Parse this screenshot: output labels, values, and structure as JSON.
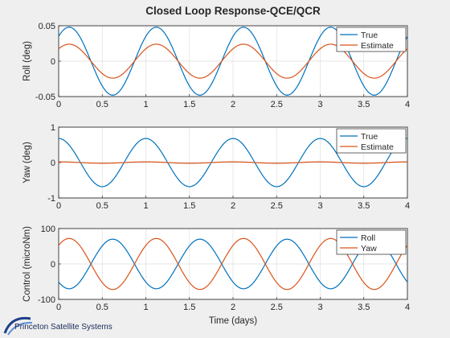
{
  "title": "Closed Loop Response-QCE/QCR",
  "footer_logo": "Princeton Satellite Systems",
  "colors": {
    "blue": "#0072bd",
    "orange": "#d95319"
  },
  "chart_data": [
    {
      "type": "line",
      "ylabel": "Roll (deg)",
      "xlabel": "",
      "xlim": [
        0,
        4
      ],
      "ylim": [
        -0.05,
        0.05
      ],
      "xticks": [
        "0",
        "0.5",
        "1",
        "1.5",
        "2",
        "2.5",
        "3",
        "3.5",
        "4"
      ],
      "yticks": [
        "-0.05",
        "0",
        "0.05"
      ],
      "grid": true,
      "legend_position": "top-right",
      "series": [
        {
          "name": "True",
          "color": "#0072bd",
          "amplitude": 0.048,
          "period_days": 1.0,
          "peak_day": 0.12
        },
        {
          "name": "Estimate",
          "color": "#d95319",
          "amplitude": 0.024,
          "period_days": 1.0,
          "peak_day": 0.12
        }
      ]
    },
    {
      "type": "line",
      "ylabel": "Yaw  (deg)",
      "xlabel": "",
      "xlim": [
        0,
        4
      ],
      "ylim": [
        -1,
        1
      ],
      "xticks": [
        "0",
        "0.5",
        "1",
        "1.5",
        "2",
        "2.5",
        "3",
        "3.5",
        "4"
      ],
      "yticks": [
        "-1",
        "0",
        "1"
      ],
      "grid": true,
      "legend_position": "top-right",
      "series": [
        {
          "name": "True",
          "color": "#0072bd",
          "amplitude": 0.68,
          "period_days": 1.0,
          "peak_day": 0.0
        },
        {
          "name": "Estimate",
          "color": "#d95319",
          "amplitude": 0.02,
          "period_days": 1.0,
          "peak_day": 0.0
        }
      ]
    },
    {
      "type": "line",
      "ylabel": "Control (microNm)",
      "xlabel": "Time (days)",
      "xlim": [
        0,
        4
      ],
      "ylim": [
        -100,
        100
      ],
      "xticks": [
        "0",
        "0.5",
        "1",
        "1.5",
        "2",
        "2.5",
        "3",
        "3.5",
        "4"
      ],
      "yticks": [
        "-100",
        "0",
        "100"
      ],
      "grid": true,
      "legend_position": "top-right",
      "series": [
        {
          "name": "Roll",
          "color": "#0072bd",
          "amplitude": 70,
          "period_days": 1.0,
          "peak_day": 0.62
        },
        {
          "name": "Yaw",
          "color": "#d95319",
          "amplitude": 72,
          "period_days": 1.0,
          "peak_day": 0.12
        }
      ]
    }
  ]
}
